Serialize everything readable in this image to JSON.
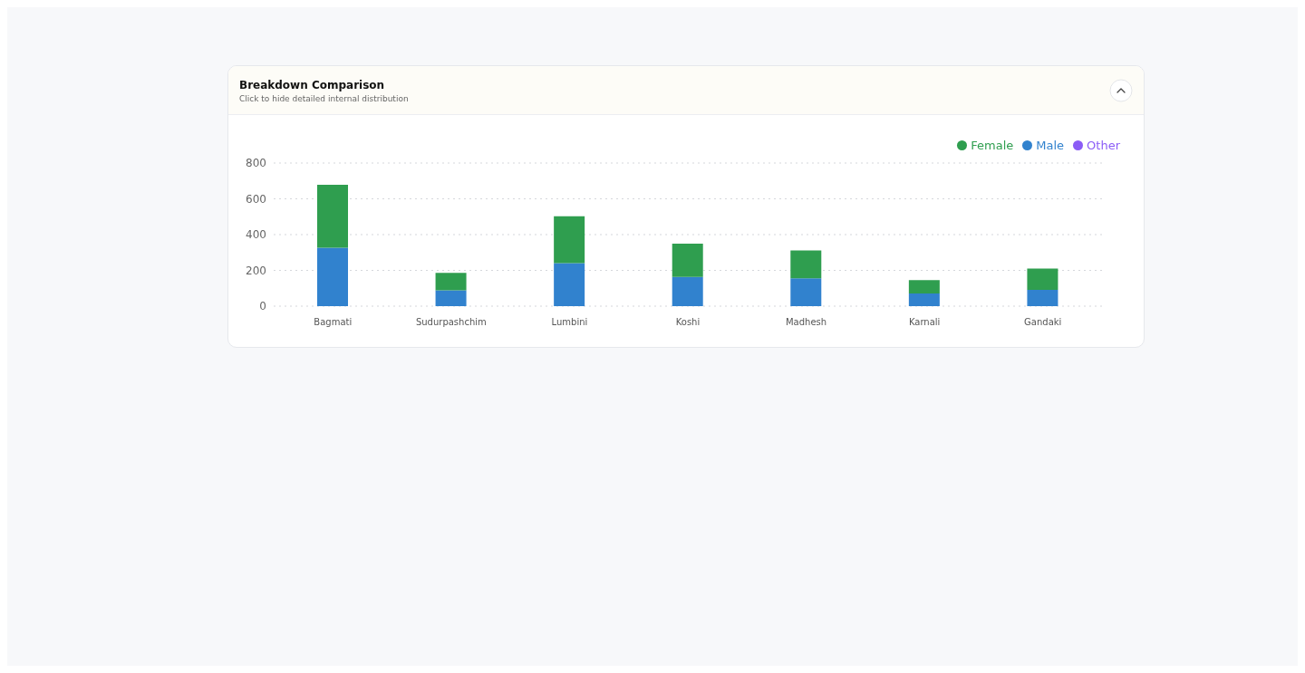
{
  "chart_data": {
    "type": "bar",
    "title": "Breakdown Comparison",
    "subtitle": "Click to hide detailed internal distribution",
    "categories": [
      "Bagmati",
      "Sudurpashchim",
      "Lumbini",
      "Koshi",
      "Madhesh",
      "Karnali",
      "Gandaki"
    ],
    "series": [
      {
        "name": "Male",
        "color": "#3182ce",
        "values": [
          326,
          88,
          241,
          163,
          156,
          71,
          91
        ]
      },
      {
        "name": "Female",
        "color": "#2f9e4f",
        "values": [
          352,
          98,
          262,
          186,
          155,
          74,
          119
        ]
      },
      {
        "name": "Other",
        "color": "#8b5cf6",
        "values": [
          0,
          0,
          0,
          0,
          0,
          0,
          0
        ]
      }
    ],
    "stacked": true,
    "ylim": [
      0,
      800
    ],
    "yticks": [
      0,
      200,
      400,
      600,
      800
    ],
    "grid": "y",
    "legend": "top right"
  }
}
